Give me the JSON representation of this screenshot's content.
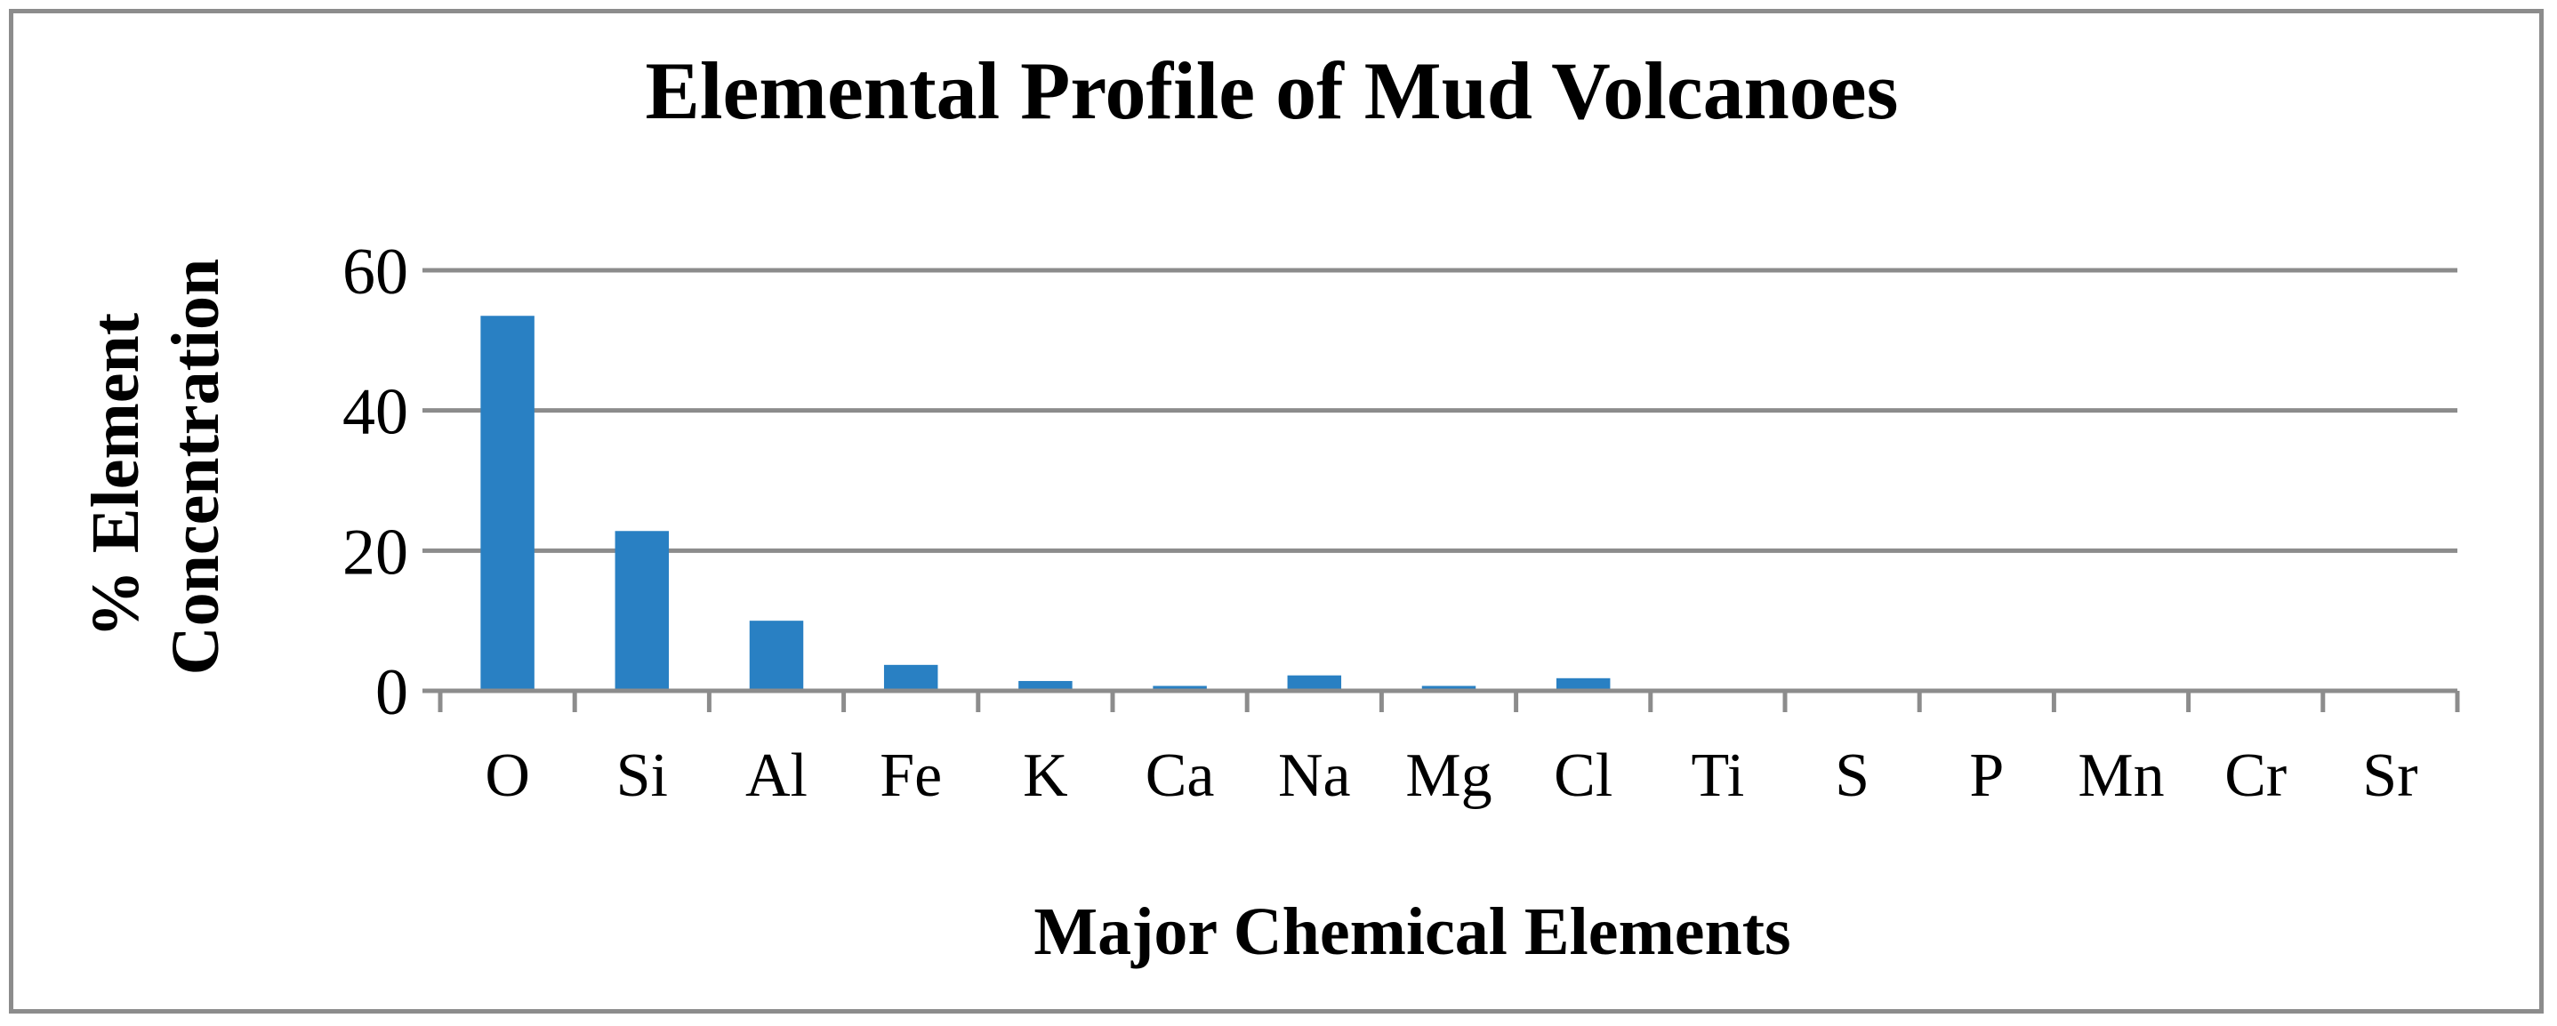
{
  "chart_data": {
    "type": "bar",
    "title": "Elemental Profile of Mud Volcanoes",
    "xlabel": "Major Chemical Elements",
    "ylabel_lines": [
      "% Element",
      "Concentration"
    ],
    "categories": [
      "O",
      "Si",
      "Al",
      "Fe",
      "K",
      "Ca",
      "Na",
      "Mg",
      "Cl",
      "Ti",
      "S",
      "P",
      "Mn",
      "Cr",
      "Sr"
    ],
    "values": [
      53.5,
      22.8,
      10.0,
      3.7,
      1.4,
      0.7,
      2.2,
      0.7,
      1.8,
      0,
      0,
      0,
      0,
      0,
      0
    ],
    "ylim": [
      0,
      60
    ],
    "yticks": [
      0,
      20,
      40,
      60
    ],
    "grid": true,
    "legend": "none",
    "colors": {
      "bar": "#2980c3",
      "grid": "#8c8c8c",
      "axis": "#8c8c8c"
    }
  }
}
